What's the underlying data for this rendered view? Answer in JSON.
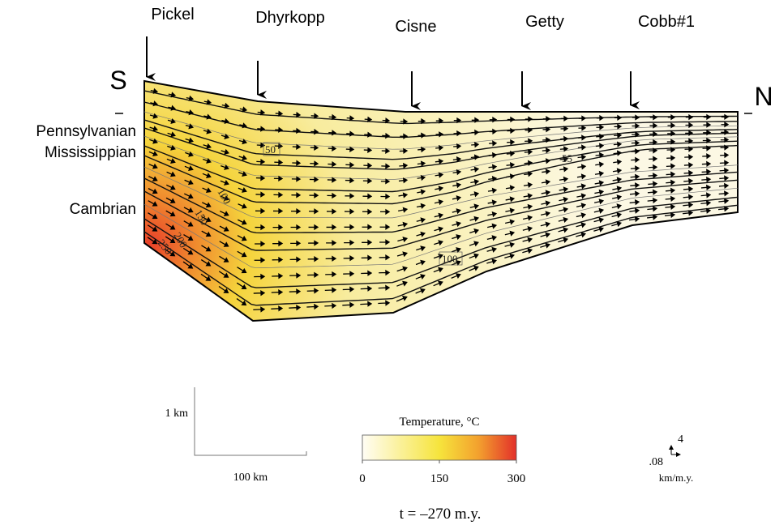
{
  "wells": [
    "Pickel",
    "Dhyrkopp",
    "Cisne",
    "Getty",
    "Cobb#1"
  ],
  "directions": {
    "south": "S",
    "north": "N"
  },
  "units": [
    "Pennsylvanian",
    "Mississippian",
    "Cambrian"
  ],
  "contour_labels": [
    "50",
    "55",
    "100",
    "100",
    "150",
    "200",
    "250"
  ],
  "scale_bar": {
    "vertical": "1 km",
    "horizontal": "100 km"
  },
  "colorbar": {
    "title": "Temperature, °C",
    "ticks": [
      0,
      150,
      300
    ]
  },
  "velocity_key": {
    "vertical": "4",
    "horizontal": ".08",
    "unit": "km/m.y."
  },
  "time_label": "t = –270 m.y."
}
